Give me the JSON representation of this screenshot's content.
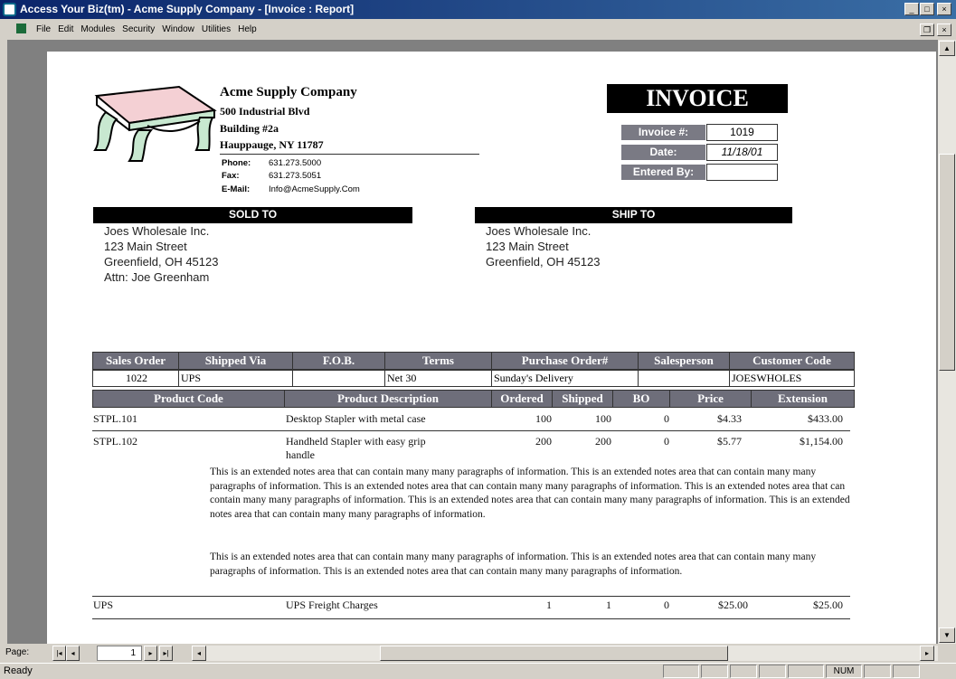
{
  "window": {
    "title": "Access Your Biz(tm) - Acme Supply Company - [Invoice : Report]",
    "controls": [
      "_",
      "□",
      "×"
    ]
  },
  "menu": [
    "File",
    "Edit",
    "Modules",
    "Security",
    "Window",
    "Utilities",
    "Help"
  ],
  "company": {
    "name": "Acme Supply Company",
    "address1": "500 Industrial Blvd",
    "address2": "Building #2a",
    "city": "Hauppauge, NY 11787",
    "phone_label": "Phone:",
    "phone": "631.273.5000",
    "fax_label": "Fax:",
    "fax": "631.273.5051",
    "email_label": "E-Mail:",
    "email": "Info@AcmeSupply.Com"
  },
  "invoice": {
    "title": "INVOICE",
    "number_label": "Invoice #:",
    "number": "1019",
    "date_label": "Date:",
    "date": "11/18/01",
    "entered_label": "Entered By:",
    "entered": ""
  },
  "sold_to": {
    "label": "SOLD TO",
    "lines": [
      "Joes Wholesale Inc.",
      "123 Main Street",
      "Greenfield, OH 45123",
      "Attn: Joe Greenham"
    ]
  },
  "ship_to": {
    "label": "SHIP TO",
    "lines": [
      "Joes Wholesale Inc.",
      "123 Main Street",
      "Greenfield, OH 45123"
    ]
  },
  "order": {
    "headers": [
      "Sales Order",
      "Shipped Via",
      "F.O.B.",
      "Terms",
      "Purchase Order#",
      "Salesperson",
      "Customer Code"
    ],
    "values": [
      "1022",
      "UPS",
      "",
      "Net 30",
      "Sunday's Delivery",
      "",
      "JOESWHOLES"
    ]
  },
  "items": {
    "headers": [
      "Product Code",
      "Product Description",
      "Ordered",
      "Shipped",
      "BO",
      "Price",
      "Extension"
    ],
    "rows": [
      {
        "code": "STPL.101",
        "desc": "Desktop Stapler with metal case",
        "desc2": "",
        "ordered": "100",
        "shipped": "100",
        "bo": "0",
        "price": "$4.33",
        "ext": "$433.00"
      },
      {
        "code": "STPL.102",
        "desc": "Handheld Stapler with easy grip",
        "desc2": "handle",
        "ordered": "200",
        "shipped": "200",
        "bo": "0",
        "price": "$5.77",
        "ext": "$1,154.00"
      },
      {
        "code": "UPS",
        "desc": "UPS Freight Charges",
        "desc2": "",
        "ordered": "1",
        "shipped": "1",
        "bo": "0",
        "price": "$25.00",
        "ext": "$25.00"
      }
    ],
    "notes": [
      "This is an extended notes area that can contain many many paragraphs of information. This is an extended notes area that can contain many many paragraphs of information. This is an extended notes area that can contain many many paragraphs of information. This is an extended notes area that can contain many many paragraphs of information. This is an extended notes area that can contain many many paragraphs of information. This is an extended notes area that can contain many many paragraphs of information.",
      "This is an extended notes area that can contain many many paragraphs of information. This is an extended notes area that can contain many many paragraphs of information. This is an extended notes area that can contain many many paragraphs of information."
    ]
  },
  "nav": {
    "label": "Page:",
    "page": "1"
  },
  "status": {
    "text": "Ready",
    "num": "NUM"
  }
}
